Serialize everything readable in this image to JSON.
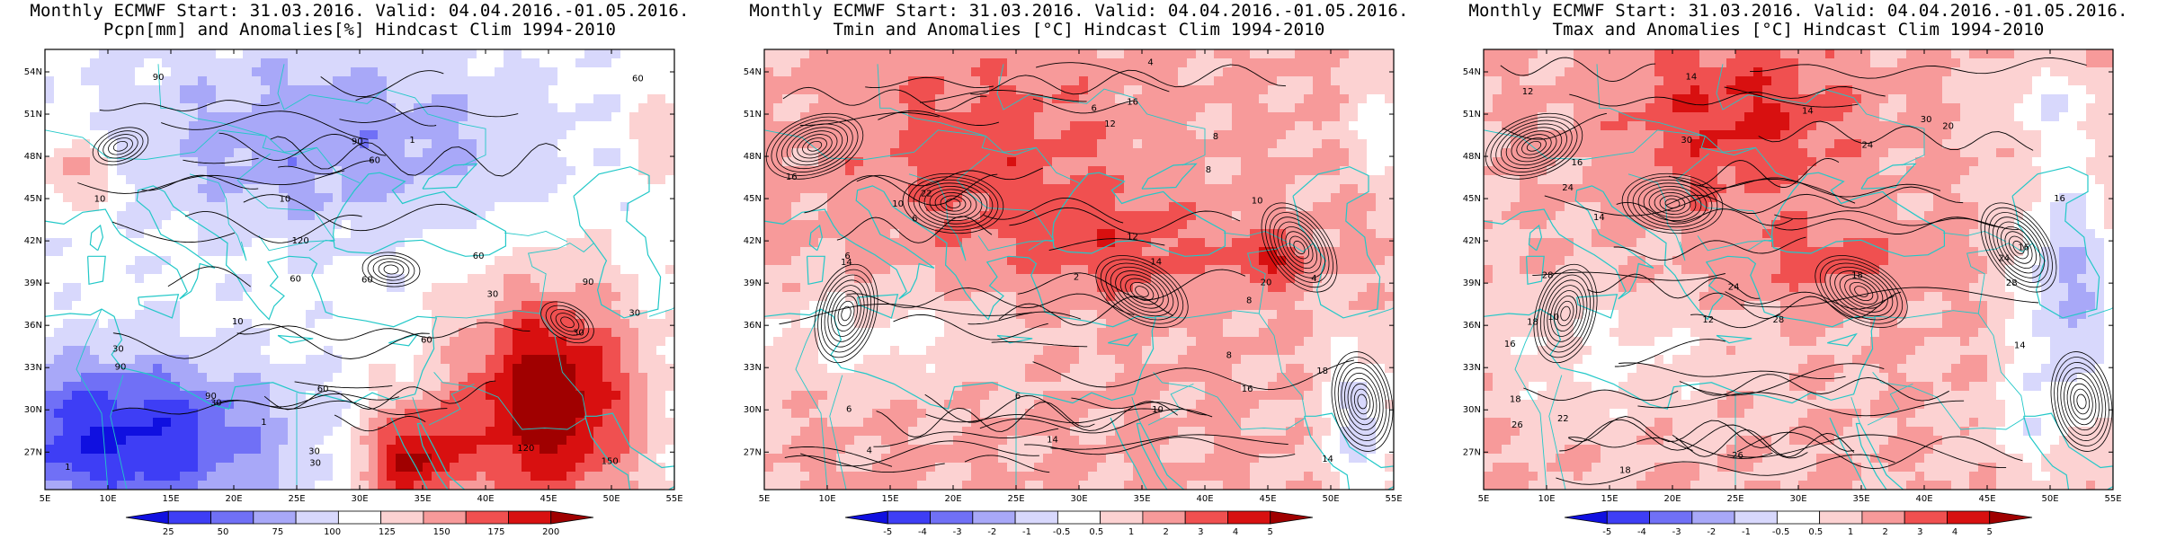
{
  "panels": [
    {
      "id": "pcpn",
      "title_line1": "Monthly ECMWF Start: 31.03.2016. Valid: 04.04.2016.-01.05.2016.",
      "title_line2": "Pcpn[mm] and Anomalies[%] Hindcast Clim 1994-2010",
      "colorbar_labels": [
        "25",
        "50",
        "75",
        "100",
        "125",
        "150",
        "175",
        "200"
      ],
      "contour_labels": [
        "60",
        "30",
        "90",
        "150",
        "120",
        "60",
        "30",
        "90",
        "60",
        "90",
        "30",
        "60",
        "60",
        "60",
        "30",
        "30",
        "60",
        "30",
        "10",
        "120",
        "30",
        "90",
        "90",
        "10",
        "1",
        "1",
        "10",
        "1"
      ],
      "colors": [
        "#1010e0",
        "#3e3ef5",
        "#7070f6",
        "#a8a8f8",
        "#d8d8fc",
        "#ffffff",
        "#fcd2d2",
        "#f79a9a",
        "#f05050",
        "#d81010",
        "#a00000"
      ]
    },
    {
      "id": "tmin",
      "title_line1": "Monthly ECMWF Start: 31.03.2016. Valid: 04.04.2016.-01.05.2016.",
      "title_line2": "Tmin and Anomalies [°C] Hindcast Clim 1994-2010",
      "colorbar_labels": [
        "-5",
        "-4",
        "-3",
        "-2",
        "-1",
        "-0.5",
        "0.5",
        "1",
        "2",
        "3",
        "4",
        "5"
      ],
      "contour_labels": [
        "4",
        "6",
        "8",
        "4",
        "6",
        "8",
        "6",
        "4",
        "2",
        "8",
        "6",
        "10",
        "8",
        "10",
        "6",
        "12",
        "16",
        "14",
        "14",
        "14",
        "12",
        "10",
        "16",
        "16",
        "18",
        "20",
        "22",
        "14"
      ],
      "colors": [
        "#1010e0",
        "#3e3ef5",
        "#7070f6",
        "#a8a8f8",
        "#d8d8fc",
        "#ffffff",
        "#fcd2d2",
        "#f79a9a",
        "#f05050",
        "#d81010",
        "#a00000"
      ]
    },
    {
      "id": "tmax",
      "title_line1": "Monthly ECMWF Start: 31.03.2016. Valid: 04.04.2016.-01.05.2016.",
      "title_line2": "Tmax and Anomalies [°C] Hindcast Clim 1994-2010",
      "colorbar_labels": [
        "-5",
        "-4",
        "-3",
        "-2",
        "-1",
        "-0.5",
        "0.5",
        "1",
        "2",
        "3",
        "4",
        "5"
      ],
      "contour_labels": [
        "14",
        "10",
        "12",
        "14",
        "16",
        "14",
        "16",
        "12",
        "18",
        "16",
        "14",
        "16",
        "18",
        "20",
        "18",
        "24",
        "28",
        "26",
        "24",
        "28",
        "30",
        "30",
        "24",
        "22",
        "28",
        "26",
        "24",
        "18"
      ],
      "colors": [
        "#1010e0",
        "#3e3ef5",
        "#7070f6",
        "#a8a8f8",
        "#d8d8fc",
        "#ffffff",
        "#fcd2d2",
        "#f79a9a",
        "#f05050",
        "#d81010",
        "#a00000"
      ]
    }
  ],
  "lat_labels": [
    "54N",
    "51N",
    "48N",
    "45N",
    "42N",
    "39N",
    "36N",
    "33N",
    "30N",
    "27N"
  ],
  "lon_labels": [
    "5E",
    "10E",
    "15E",
    "20E",
    "25E",
    "30E",
    "35E",
    "40E",
    "45E",
    "50E",
    "55E"
  ]
}
